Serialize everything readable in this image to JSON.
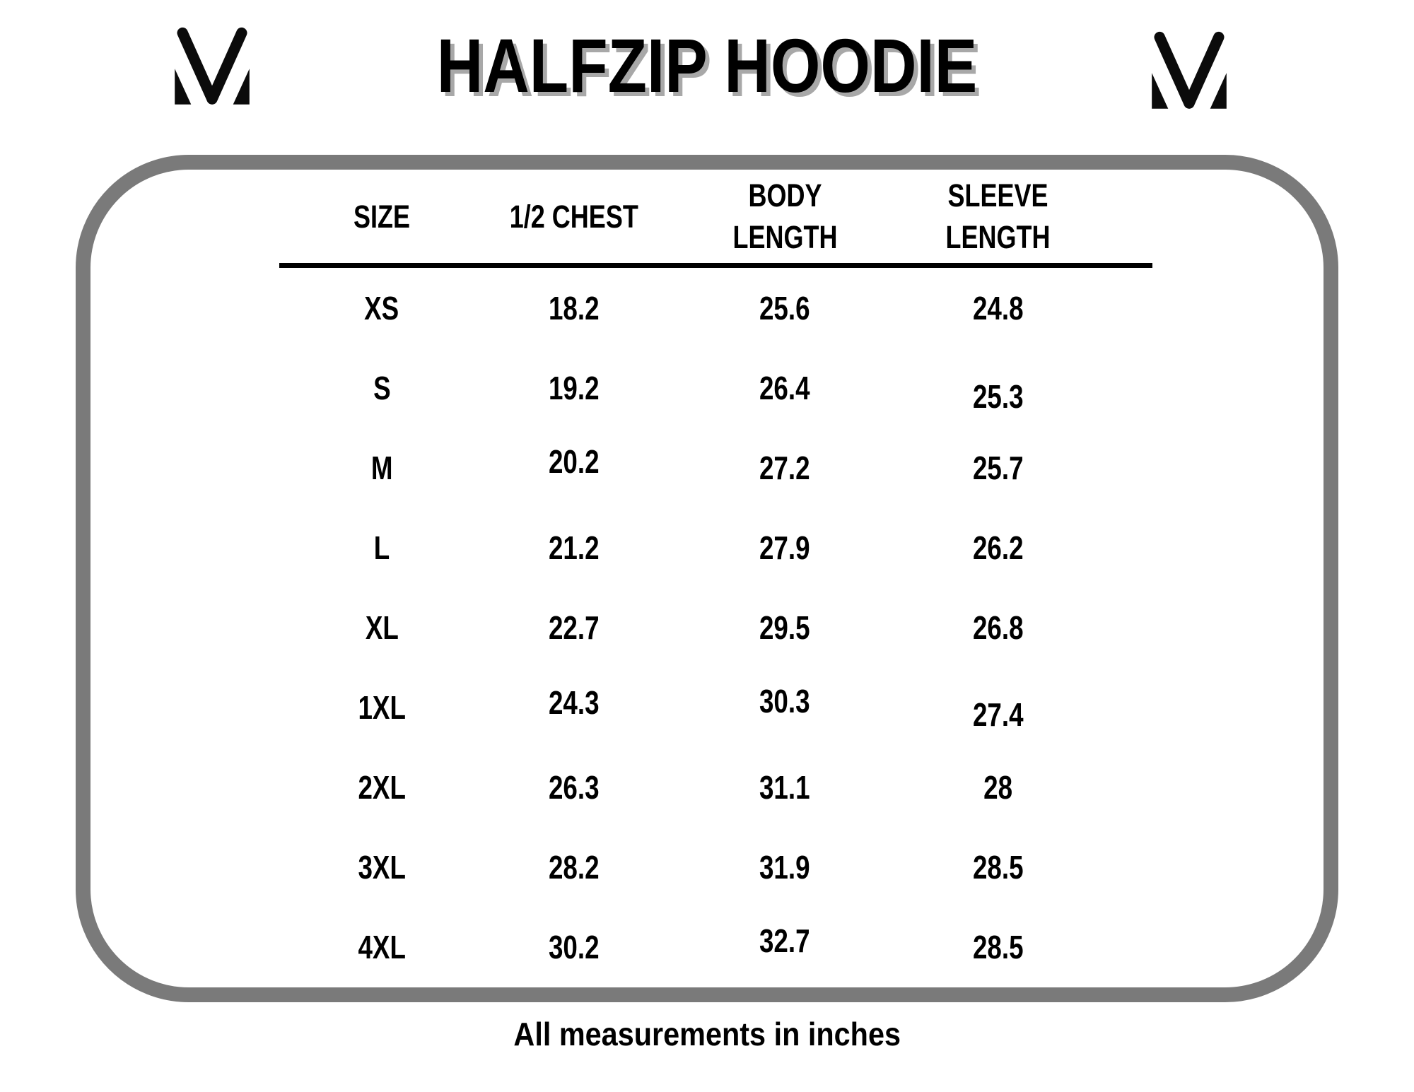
{
  "page": {
    "title": "HALFZIP HOODIE",
    "footer_note": "All measurements in inches"
  },
  "brand": {
    "logo": "mv-monogram"
  },
  "colors": {
    "background": "#ffffff",
    "text": "#000000",
    "panel_border": "#7a7a7a",
    "header_rule": "#000000",
    "title_shadow": "#a8a8a8"
  },
  "chart_data": {
    "type": "table",
    "title": "HALFZIP HOODIE",
    "columns": [
      "SIZE",
      "1/2 CHEST",
      "BODY\nLENGTH",
      "SLEEVE\nLENGTH"
    ],
    "rows": [
      [
        "XS",
        "18.2",
        "25.6",
        "24.8"
      ],
      [
        "S",
        "19.2",
        "26.4",
        "25.3"
      ],
      [
        "M",
        "20.2",
        "27.2",
        "25.7"
      ],
      [
        "L",
        "21.2",
        "27.9",
        "26.2"
      ],
      [
        "XL",
        "22.7",
        "29.5",
        "26.8"
      ],
      [
        "1XL",
        "24.3",
        "30.3",
        "27.4"
      ],
      [
        "2XL",
        "26.3",
        "31.1",
        "28"
      ],
      [
        "3XL",
        "28.2",
        "31.9",
        "28.5"
      ],
      [
        "4XL",
        "30.2",
        "32.7",
        "28.5"
      ]
    ],
    "note": "All measurements in inches",
    "units": "inches"
  }
}
